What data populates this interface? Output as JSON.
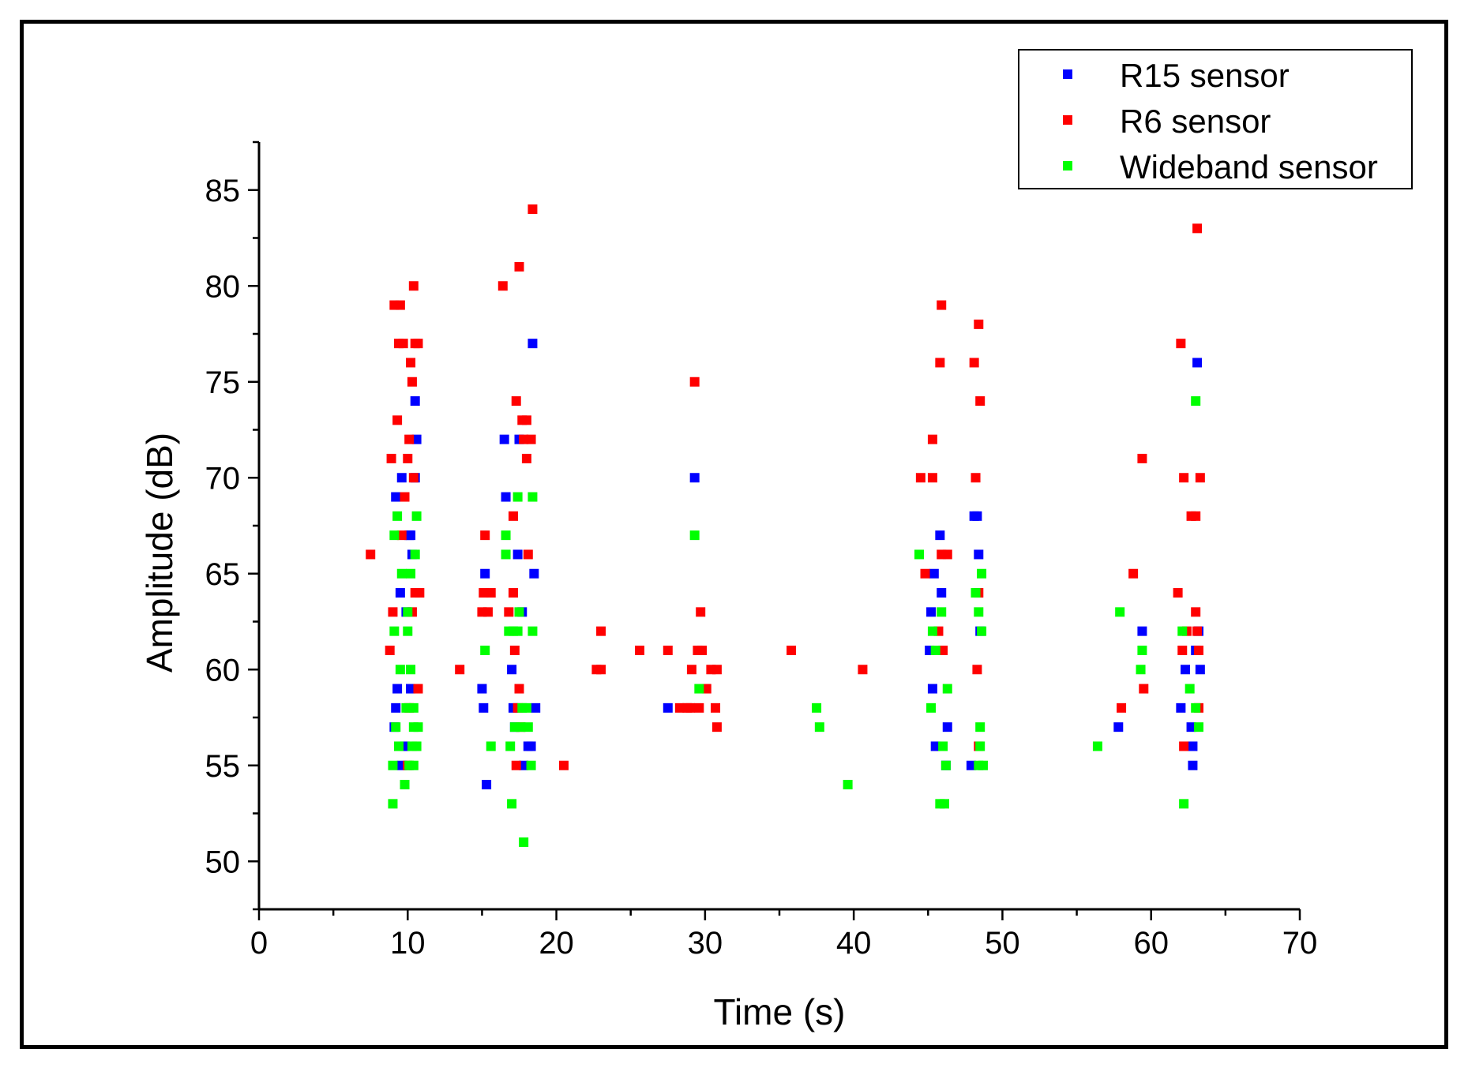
{
  "chart_data": {
    "type": "scatter",
    "title": "",
    "xlabel": "Time (s)",
    "ylabel": "Amplitude (dB)",
    "xlim": [
      0,
      70
    ],
    "ylim": [
      47.5,
      87.5
    ],
    "xticks": [
      0,
      10,
      20,
      30,
      40,
      50,
      60,
      70
    ],
    "yticks": [
      50,
      55,
      60,
      65,
      70,
      75,
      80,
      85
    ],
    "grid": false,
    "legend_position": "top-right",
    "series": [
      {
        "name": "R15 sensor",
        "color": "#0000ff",
        "points": [
          [
            9.1,
            57
          ],
          [
            9.2,
            58
          ],
          [
            9.3,
            59
          ],
          [
            9.2,
            69
          ],
          [
            9.5,
            64
          ],
          [
            9.6,
            70
          ],
          [
            9.6,
            55
          ],
          [
            9.8,
            56
          ],
          [
            10.1,
            67
          ],
          [
            10.2,
            67
          ],
          [
            10.5,
            74
          ],
          [
            10.6,
            72
          ],
          [
            10.5,
            70
          ],
          [
            10.3,
            66
          ],
          [
            9.9,
            63
          ],
          [
            10.2,
            59
          ],
          [
            15.0,
            59
          ],
          [
            15.1,
            58
          ],
          [
            15.2,
            65
          ],
          [
            15.3,
            54
          ],
          [
            16.5,
            72
          ],
          [
            16.6,
            69
          ],
          [
            17.0,
            60
          ],
          [
            17.1,
            58
          ],
          [
            17.2,
            57
          ],
          [
            17.4,
            66
          ],
          [
            17.5,
            72
          ],
          [
            17.7,
            63
          ],
          [
            18.1,
            56
          ],
          [
            18.3,
            56
          ],
          [
            18.4,
            77
          ],
          [
            18.5,
            65
          ],
          [
            18.6,
            58
          ],
          [
            17.8,
            55
          ],
          [
            27.5,
            58
          ],
          [
            29.3,
            70
          ],
          [
            45.2,
            63
          ],
          [
            45.3,
            59
          ],
          [
            45.4,
            65
          ],
          [
            45.5,
            56
          ],
          [
            45.8,
            67
          ],
          [
            45.9,
            64
          ],
          [
            46.3,
            57
          ],
          [
            45.1,
            61
          ],
          [
            46.2,
            55
          ],
          [
            48.1,
            68
          ],
          [
            48.3,
            68
          ],
          [
            48.4,
            66
          ],
          [
            48.5,
            62
          ],
          [
            47.9,
            55
          ],
          [
            57.8,
            57
          ],
          [
            59.4,
            62
          ],
          [
            62.0,
            58
          ],
          [
            62.3,
            60
          ],
          [
            62.7,
            57
          ],
          [
            62.8,
            56
          ],
          [
            62.8,
            55
          ],
          [
            63.1,
            76
          ],
          [
            63.2,
            62
          ],
          [
            63.3,
            60
          ],
          [
            63.0,
            61
          ]
        ]
      },
      {
        "name": "R6 sensor",
        "color": "#ff0000",
        "points": [
          [
            7.5,
            66
          ],
          [
            8.8,
            61
          ],
          [
            8.9,
            71
          ],
          [
            9.0,
            63
          ],
          [
            9.1,
            79
          ],
          [
            9.3,
            73
          ],
          [
            9.4,
            77
          ],
          [
            9.5,
            79
          ],
          [
            9.6,
            67
          ],
          [
            9.7,
            77
          ],
          [
            9.8,
            69
          ],
          [
            10.0,
            71
          ],
          [
            10.1,
            72
          ],
          [
            10.2,
            76
          ],
          [
            10.3,
            75
          ],
          [
            10.4,
            70
          ],
          [
            10.4,
            80
          ],
          [
            10.5,
            77
          ],
          [
            10.7,
            77
          ],
          [
            10.8,
            64
          ],
          [
            10.5,
            64
          ],
          [
            10.3,
            63
          ],
          [
            10.1,
            58
          ],
          [
            10.7,
            59
          ],
          [
            10.0,
            55
          ],
          [
            13.5,
            60
          ],
          [
            15.0,
            63
          ],
          [
            15.1,
            64
          ],
          [
            15.2,
            67
          ],
          [
            15.4,
            63
          ],
          [
            15.6,
            64
          ],
          [
            16.4,
            80
          ],
          [
            16.8,
            63
          ],
          [
            17.1,
            68
          ],
          [
            17.1,
            64
          ],
          [
            17.2,
            61
          ],
          [
            17.3,
            74
          ],
          [
            17.4,
            58
          ],
          [
            17.5,
            81
          ],
          [
            17.5,
            59
          ],
          [
            17.7,
            73
          ],
          [
            17.8,
            72
          ],
          [
            18.0,
            73
          ],
          [
            18.0,
            71
          ],
          [
            18.1,
            66
          ],
          [
            18.3,
            72
          ],
          [
            18.4,
            84
          ],
          [
            17.3,
            55
          ],
          [
            17.6,
            57
          ],
          [
            20.5,
            55
          ],
          [
            22.7,
            60
          ],
          [
            23.0,
            60
          ],
          [
            23.0,
            62
          ],
          [
            25.6,
            61
          ],
          [
            27.5,
            61
          ],
          [
            28.3,
            58
          ],
          [
            28.8,
            58
          ],
          [
            29.0,
            58
          ],
          [
            29.1,
            60
          ],
          [
            29.3,
            75
          ],
          [
            29.5,
            61
          ],
          [
            29.6,
            58
          ],
          [
            29.7,
            63
          ],
          [
            29.8,
            61
          ],
          [
            30.1,
            59
          ],
          [
            30.4,
            60
          ],
          [
            30.7,
            58
          ],
          [
            30.8,
            60
          ],
          [
            30.8,
            57
          ],
          [
            35.8,
            61
          ],
          [
            40.6,
            60
          ],
          [
            44.5,
            70
          ],
          [
            44.8,
            65
          ],
          [
            45.3,
            70
          ],
          [
            45.3,
            72
          ],
          [
            45.7,
            62
          ],
          [
            45.8,
            76
          ],
          [
            45.9,
            79
          ],
          [
            45.9,
            66
          ],
          [
            46.0,
            61
          ],
          [
            46.3,
            66
          ],
          [
            48.1,
            76
          ],
          [
            48.2,
            70
          ],
          [
            48.3,
            60
          ],
          [
            48.4,
            64
          ],
          [
            48.4,
            78
          ],
          [
            48.5,
            74
          ],
          [
            48.4,
            56
          ],
          [
            58.8,
            65
          ],
          [
            58.0,
            58
          ],
          [
            59.4,
            71
          ],
          [
            59.5,
            59
          ],
          [
            61.8,
            64
          ],
          [
            62.0,
            77
          ],
          [
            62.2,
            70
          ],
          [
            62.1,
            61
          ],
          [
            62.2,
            56
          ],
          [
            62.4,
            62
          ],
          [
            62.7,
            68
          ],
          [
            63.0,
            68
          ],
          [
            63.0,
            63
          ],
          [
            63.2,
            58
          ],
          [
            63.1,
            83
          ],
          [
            63.3,
            70
          ],
          [
            63.1,
            62
          ],
          [
            63.2,
            61
          ]
        ]
      },
      {
        "name": "Wideband sensor",
        "color": "#00ff00",
        "points": [
          [
            9.0,
            53
          ],
          [
            9.0,
            55
          ],
          [
            9.1,
            67
          ],
          [
            9.1,
            62
          ],
          [
            9.2,
            57
          ],
          [
            9.3,
            68
          ],
          [
            9.4,
            56
          ],
          [
            9.5,
            60
          ],
          [
            9.6,
            65
          ],
          [
            9.8,
            54
          ],
          [
            9.9,
            58
          ],
          [
            10.0,
            62
          ],
          [
            10.0,
            63
          ],
          [
            10.2,
            65
          ],
          [
            10.2,
            60
          ],
          [
            10.3,
            56
          ],
          [
            10.4,
            57
          ],
          [
            10.4,
            55
          ],
          [
            10.5,
            66
          ],
          [
            10.6,
            68
          ],
          [
            10.7,
            57
          ],
          [
            10.6,
            56
          ],
          [
            10.4,
            58
          ],
          [
            10.1,
            55
          ],
          [
            15.2,
            61
          ],
          [
            15.6,
            56
          ],
          [
            16.6,
            67
          ],
          [
            16.6,
            66
          ],
          [
            16.8,
            62
          ],
          [
            16.9,
            56
          ],
          [
            17.0,
            53
          ],
          [
            17.1,
            62
          ],
          [
            17.2,
            57
          ],
          [
            17.4,
            62
          ],
          [
            17.5,
            63
          ],
          [
            17.6,
            57
          ],
          [
            17.7,
            58
          ],
          [
            17.8,
            51
          ],
          [
            17.4,
            69
          ],
          [
            18.0,
            58
          ],
          [
            18.1,
            57
          ],
          [
            18.3,
            55
          ],
          [
            18.4,
            69
          ],
          [
            18.4,
            62
          ],
          [
            29.3,
            67
          ],
          [
            29.6,
            59
          ],
          [
            37.5,
            58
          ],
          [
            37.7,
            57
          ],
          [
            39.6,
            54
          ],
          [
            44.4,
            66
          ],
          [
            45.2,
            58
          ],
          [
            45.3,
            62
          ],
          [
            45.5,
            61
          ],
          [
            45.9,
            63
          ],
          [
            45.8,
            53
          ],
          [
            46.1,
            53
          ],
          [
            46.0,
            56
          ],
          [
            46.2,
            55
          ],
          [
            46.3,
            59
          ],
          [
            48.2,
            64
          ],
          [
            48.4,
            63
          ],
          [
            48.4,
            55
          ],
          [
            48.5,
            57
          ],
          [
            48.6,
            62
          ],
          [
            48.6,
            65
          ],
          [
            48.5,
            56
          ],
          [
            48.7,
            55
          ],
          [
            56.4,
            56
          ],
          [
            57.9,
            63
          ],
          [
            59.3,
            60
          ],
          [
            59.4,
            61
          ],
          [
            62.1,
            62
          ],
          [
            62.2,
            53
          ],
          [
            62.6,
            59
          ],
          [
            63.0,
            58
          ],
          [
            63.0,
            74
          ],
          [
            63.2,
            57
          ]
        ]
      }
    ]
  }
}
